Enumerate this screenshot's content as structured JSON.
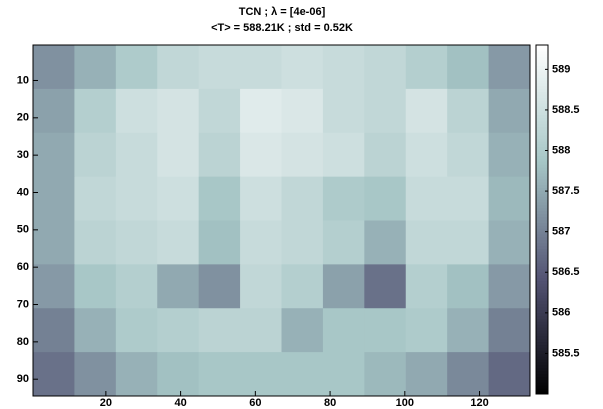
{
  "chart_data": {
    "type": "heatmap",
    "title": "TCN ; λ = [4e-06]",
    "subtitle": "<T> = 588.21K ; std = 0.52K",
    "xlim": [
      0.5,
      133.5
    ],
    "ylim": [
      94.5,
      0.5
    ],
    "xticks": [
      20,
      40,
      60,
      80,
      100,
      120
    ],
    "yticks": [
      10,
      20,
      30,
      40,
      50,
      60,
      70,
      80,
      90
    ],
    "clim": [
      585,
      589.3
    ],
    "cticks": [
      585.5,
      586,
      586.5,
      587,
      587.5,
      588,
      588.5,
      589
    ],
    "colormap": [
      "#000000",
      "#545474",
      "#a6c6c6",
      "#ffffff"
    ],
    "values": [
      [
        587.2,
        587.6,
        588,
        588.3,
        588.4,
        588.4,
        588.5,
        588.4,
        588.3,
        588.1,
        587.8,
        587.3
      ],
      [
        587.4,
        588.1,
        588.5,
        588.6,
        588.3,
        588.8,
        588.7,
        588.4,
        588.3,
        588.6,
        588.2,
        587.5
      ],
      [
        587.5,
        588.2,
        588.4,
        588.6,
        588.2,
        588.7,
        588.6,
        588.5,
        588.2,
        588.5,
        588.3,
        587.6
      ],
      [
        587.5,
        588.3,
        588.4,
        588.5,
        587.9,
        588.5,
        588.3,
        588,
        587.9,
        588.4,
        588.4,
        587.7
      ],
      [
        587.5,
        588.2,
        588.3,
        588.4,
        587.8,
        588.4,
        588.3,
        588.1,
        587.6,
        588.3,
        588.3,
        587.6
      ],
      [
        587.3,
        587.9,
        588.1,
        587.5,
        587.2,
        588.3,
        588.1,
        587.4,
        586.8,
        588.1,
        587.8,
        587.3
      ],
      [
        587,
        587.6,
        588,
        588.1,
        588.2,
        588.2,
        587.6,
        587.9,
        587.9,
        588,
        587.6,
        587
      ],
      [
        586.8,
        587.2,
        587.6,
        587.8,
        587.9,
        587.9,
        587.9,
        587.9,
        587.7,
        587.5,
        587.1,
        586.7
      ]
    ]
  }
}
